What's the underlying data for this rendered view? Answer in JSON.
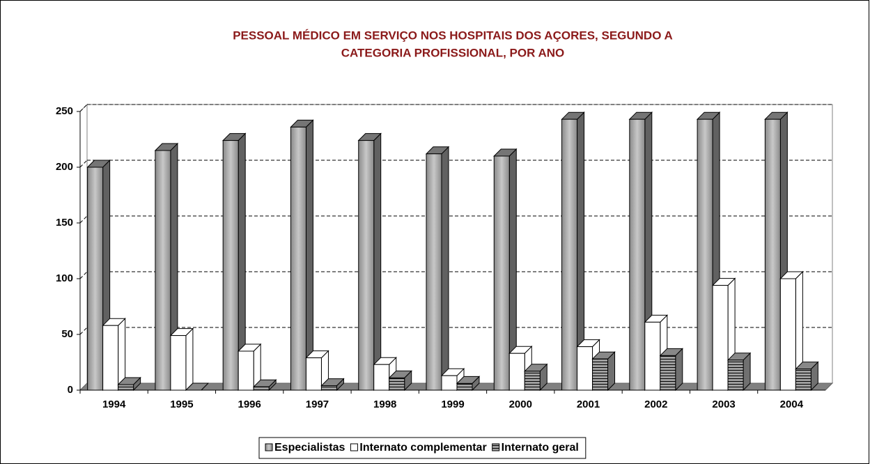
{
  "chart_data": {
    "type": "bar3d",
    "title": [
      "PESSOAL MÉDICO EM SERVIÇO NOS HOSPITAIS DOS AÇORES, SEGUNDO A",
      "CATEGORIA PROFISSIONAL, POR ANO"
    ],
    "categories": [
      "1994",
      "1995",
      "1996",
      "1997",
      "1998",
      "1999",
      "2000",
      "2001",
      "2002",
      "2003",
      "2004"
    ],
    "series": [
      {
        "name": "Especialistas",
        "color": "#8a8a8a",
        "values": [
          200,
          215,
          224,
          236,
          224,
          212,
          210,
          243,
          243,
          243,
          243
        ]
      },
      {
        "name": "Internato complementar",
        "color": "#ffffff",
        "values": [
          58,
          49,
          35,
          29,
          23,
          13,
          33,
          39,
          61,
          94,
          100
        ]
      },
      {
        "name": "Internato geral",
        "color": "#a0a0a0",
        "values": [
          5,
          0,
          3,
          4,
          11,
          6,
          17,
          28,
          31,
          27,
          19
        ]
      }
    ],
    "ylim": [
      0,
      250
    ],
    "yticks": [
      0,
      50,
      100,
      150,
      200,
      250
    ],
    "grid": true,
    "legend": "bottom"
  }
}
